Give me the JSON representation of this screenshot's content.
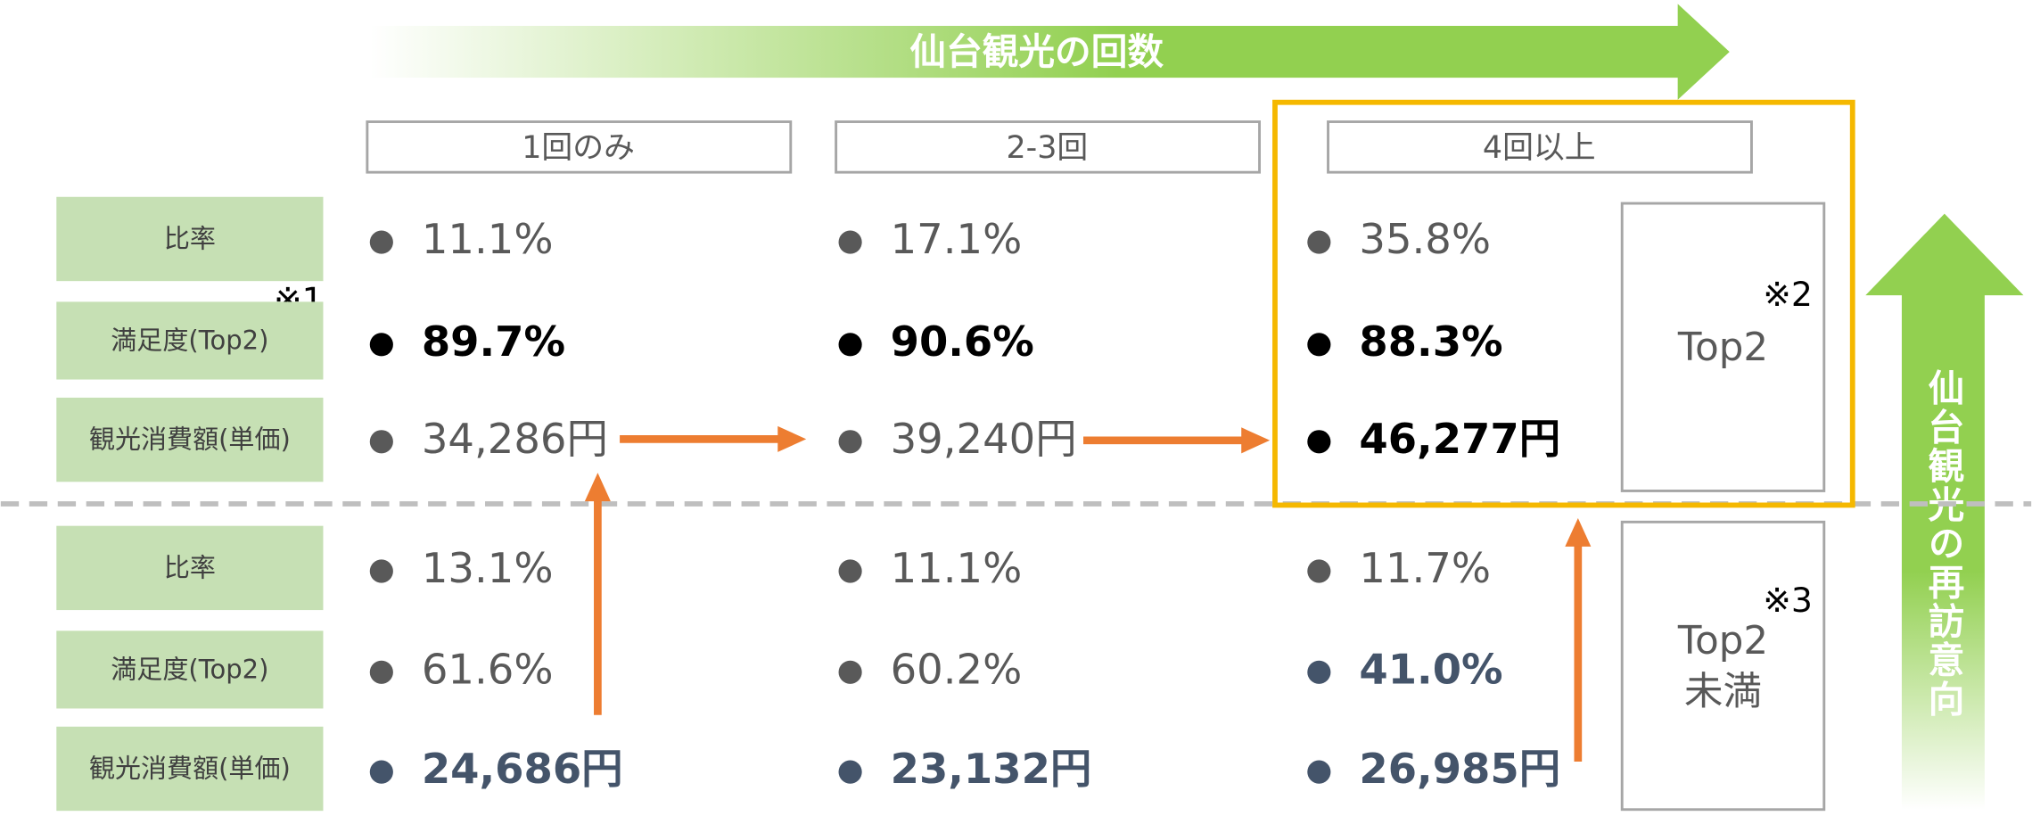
{
  "header": {
    "title": "仙台観光の回数"
  },
  "side_label": "仙台観光の再訪意向",
  "row_note": "※1",
  "columns": [
    "1回のみ",
    "2-3回",
    "4回以上"
  ],
  "groups": [
    {
      "label": [
        "Top2"
      ],
      "note": "※2",
      "rows": [
        {
          "label": "比率",
          "values": [
            "11.1%",
            "17.1%",
            "35.8%"
          ]
        },
        {
          "label": "満足度(Top2)",
          "values": [
            "89.7%",
            "90.6%",
            "88.3%"
          ]
        },
        {
          "label": "観光消費額(単価)",
          "values": [
            "34,286円",
            "39,240円",
            "46,277円"
          ]
        }
      ]
    },
    {
      "label": [
        "Top2",
        "未満"
      ],
      "note": "※3",
      "rows": [
        {
          "label": "比率",
          "values": [
            "13.1%",
            "11.1%",
            "11.7%"
          ]
        },
        {
          "label": "満足度(Top2)",
          "values": [
            "61.6%",
            "60.2%",
            "41.0%"
          ]
        },
        {
          "label": "観光消費額(単価)",
          "values": [
            "24,686円",
            "23,132円",
            "26,985円"
          ]
        }
      ]
    }
  ]
}
